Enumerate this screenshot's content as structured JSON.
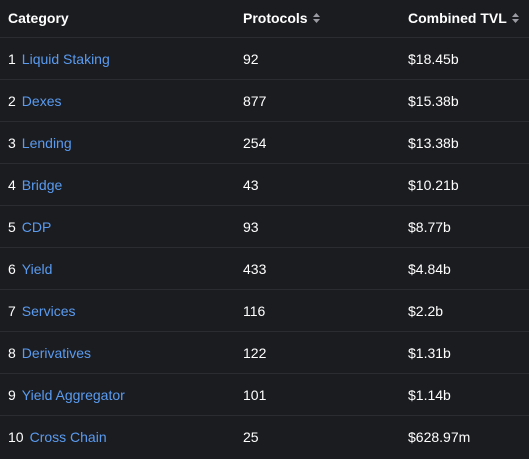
{
  "header": {
    "category": "Category",
    "protocols": "Protocols",
    "combined_tvl": "Combined TVL",
    "sort_icon": "sort-updown-icon",
    "sort_icon_color": "#9b9ca3"
  },
  "colors": {
    "background": "#1b1c20",
    "divider": "#2a2c31",
    "link": "#5a9bf0",
    "text": "#ffffff"
  },
  "rows": [
    {
      "rank": "1",
      "category": "Liquid Staking",
      "protocols": "92",
      "tvl": "$18.45b"
    },
    {
      "rank": "2",
      "category": "Dexes",
      "protocols": "877",
      "tvl": "$15.38b"
    },
    {
      "rank": "3",
      "category": "Lending",
      "protocols": "254",
      "tvl": "$13.38b"
    },
    {
      "rank": "4",
      "category": "Bridge",
      "protocols": "43",
      "tvl": "$10.21b"
    },
    {
      "rank": "5",
      "category": "CDP",
      "protocols": "93",
      "tvl": "$8.77b"
    },
    {
      "rank": "6",
      "category": "Yield",
      "protocols": "433",
      "tvl": "$4.84b"
    },
    {
      "rank": "7",
      "category": "Services",
      "protocols": "116",
      "tvl": "$2.2b"
    },
    {
      "rank": "8",
      "category": "Derivatives",
      "protocols": "122",
      "tvl": "$1.31b"
    },
    {
      "rank": "9",
      "category": "Yield Aggregator",
      "protocols": "101",
      "tvl": "$1.14b"
    },
    {
      "rank": "10",
      "category": "Cross Chain",
      "protocols": "25",
      "tvl": "$628.97m"
    }
  ]
}
